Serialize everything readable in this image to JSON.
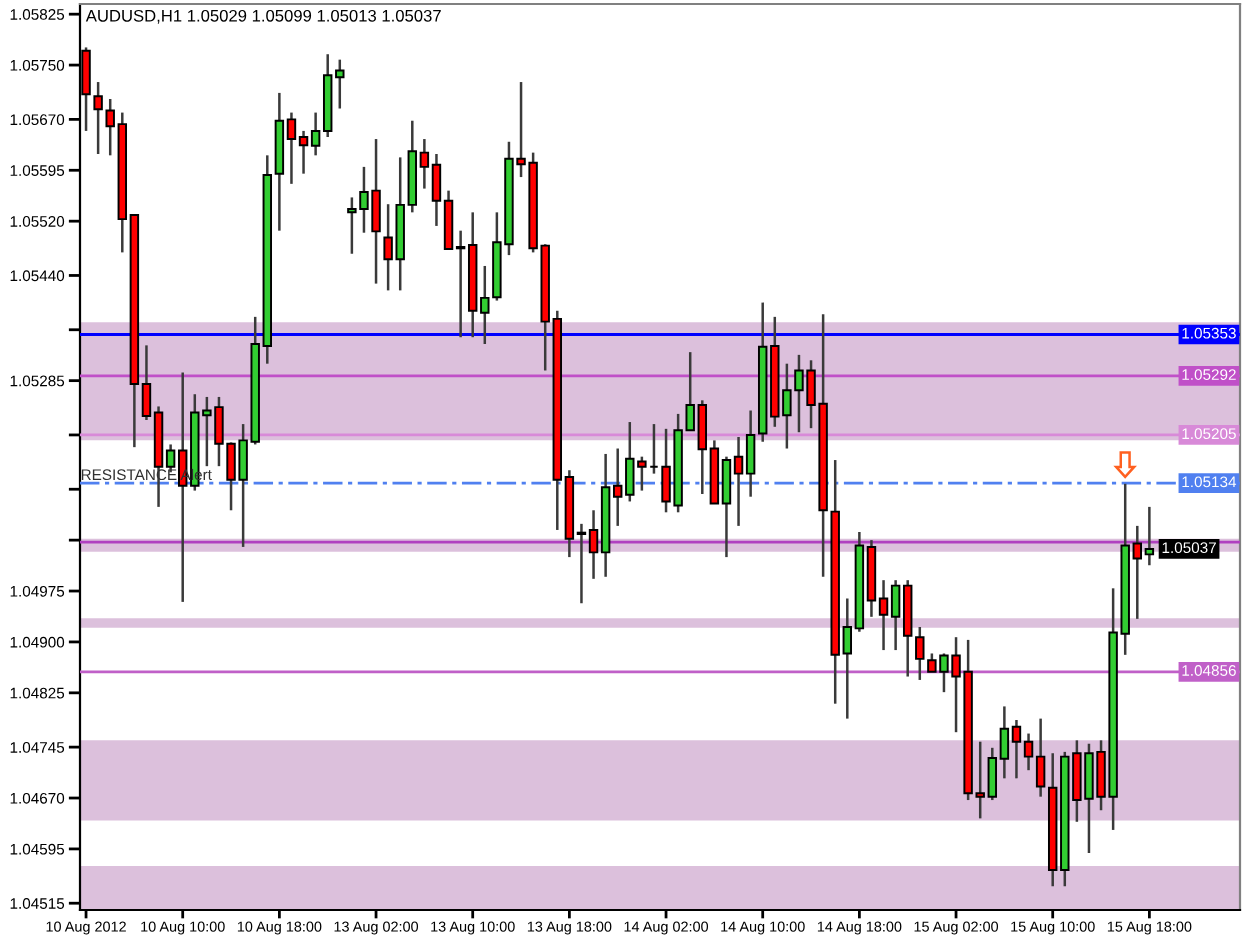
{
  "chart_data": {
    "type": "candlestick",
    "title": "AUDUSD,H1 1.05029 1.05099 1.05013 1.05037",
    "categories": [
      "10 Aug 2012",
      null,
      null,
      null,
      null,
      null,
      null,
      null,
      "10 Aug 10:00",
      null,
      null,
      null,
      null,
      null,
      null,
      null,
      "10 Aug 18:00",
      null,
      null,
      null,
      null,
      null,
      null,
      null,
      "13 Aug 02:00",
      null,
      null,
      null,
      null,
      null,
      null,
      null,
      "13 Aug 10:00",
      null,
      null,
      null,
      null,
      null,
      null,
      null,
      "13 Aug 18:00",
      null,
      null,
      null,
      null,
      null,
      null,
      null,
      "14 Aug 02:00",
      null,
      null,
      null,
      null,
      null,
      null,
      null,
      "14 Aug 10:00",
      null,
      null,
      null,
      null,
      null,
      null,
      null,
      "14 Aug 18:00",
      null,
      null,
      null,
      null,
      null,
      null,
      null,
      "15 Aug 02:00",
      null,
      null,
      null,
      null,
      null,
      null,
      null,
      "15 Aug 10:00",
      null,
      null,
      null,
      null,
      null,
      null,
      null,
      "15 Aug 18:00"
    ],
    "ohlc": [
      [
        1.05771,
        1.05776,
        1.05653,
        1.05707
      ],
      [
        1.05704,
        1.05725,
        1.05619,
        1.05685
      ],
      [
        1.05683,
        1.057,
        1.05617,
        1.0566
      ],
      [
        1.05663,
        1.0568,
        1.05474,
        1.05523
      ],
      [
        1.05529,
        1.05529,
        1.05187,
        1.0528
      ],
      [
        1.0528,
        1.05337,
        1.05227,
        1.05233
      ],
      [
        1.05238,
        1.05247,
        1.05099,
        1.05158
      ],
      [
        1.05158,
        1.05191,
        1.0515,
        1.05182
      ],
      [
        1.05182,
        1.05297,
        1.04959,
        1.0513
      ],
      [
        1.0513,
        1.05265,
        1.05123,
        1.05238
      ],
      [
        1.05234,
        1.05261,
        1.05159,
        1.05241
      ],
      [
        1.05246,
        1.05261,
        1.05159,
        1.05192
      ],
      [
        1.05192,
        1.05194,
        1.05094,
        1.05139
      ],
      [
        1.05139,
        1.05221,
        1.0504,
        1.05197
      ],
      [
        1.05195,
        1.05379,
        1.05191,
        1.05339
      ],
      [
        1.05336,
        1.05617,
        1.0531,
        1.05588
      ],
      [
        1.0559,
        1.05709,
        1.05506,
        1.05668
      ],
      [
        1.0567,
        1.0568,
        1.05575,
        1.05641
      ],
      [
        1.05644,
        1.05653,
        1.0559,
        1.05632
      ],
      [
        1.05631,
        1.0568,
        1.05617,
        1.05653
      ],
      [
        1.05653,
        1.05766,
        1.05644,
        1.05735
      ],
      [
        1.05732,
        1.05758,
        1.05686,
        1.05742
      ],
      [
        1.05533,
        1.05555,
        1.05472,
        1.05538
      ],
      [
        1.05538,
        1.056,
        1.05503,
        1.05563
      ],
      [
        1.05565,
        1.05641,
        1.05428,
        1.05505
      ],
      [
        1.05496,
        1.05545,
        1.05418,
        1.05464
      ],
      [
        1.05464,
        1.05614,
        1.05418,
        1.05544
      ],
      [
        1.05544,
        1.05668,
        1.05533,
        1.05623
      ],
      [
        1.05621,
        1.05641,
        1.05568,
        1.056
      ],
      [
        1.05603,
        1.05619,
        1.05513,
        1.0555
      ],
      [
        1.0555,
        1.05565,
        1.05479,
        1.05479
      ],
      [
        1.05482,
        1.05506,
        1.05349,
        1.0548
      ],
      [
        1.05485,
        1.05533,
        1.05349,
        1.05388
      ],
      [
        1.05385,
        1.05454,
        1.05339,
        1.05407
      ],
      [
        1.05408,
        1.05533,
        1.05403,
        1.05489
      ],
      [
        1.05486,
        1.05637,
        1.0547,
        1.05612
      ],
      [
        1.05612,
        1.05725,
        1.05585,
        1.05604
      ],
      [
        1.05606,
        1.05621,
        1.05474,
        1.0548
      ],
      [
        1.05484,
        1.05486,
        1.053,
        1.05372
      ],
      [
        1.05376,
        1.05388,
        1.05065,
        1.05139
      ],
      [
        1.05143,
        1.05153,
        1.05025,
        1.05052
      ],
      [
        1.05059,
        1.05074,
        1.04957,
        1.05061
      ],
      [
        1.05065,
        1.05094,
        1.04993,
        1.05032
      ],
      [
        1.05032,
        1.05177,
        1.04996,
        1.05128
      ],
      [
        1.0513,
        1.05185,
        1.05071,
        1.05114
      ],
      [
        1.05117,
        1.05224,
        1.05107,
        1.0517
      ],
      [
        1.05166,
        1.05173,
        1.05123,
        1.05158
      ],
      [
        1.05158,
        1.05221,
        1.05148,
        1.05158
      ],
      [
        1.05158,
        1.05214,
        1.05091,
        1.05107
      ],
      [
        1.05101,
        1.05236,
        1.05091,
        1.05212
      ],
      [
        1.05212,
        1.05327,
        1.05212,
        1.05249
      ],
      [
        1.05249,
        1.05256,
        1.05118,
        1.05184
      ],
      [
        1.05185,
        1.05197,
        1.05104,
        1.05104
      ],
      [
        1.05104,
        1.05173,
        1.05025,
        1.05168
      ],
      [
        1.05173,
        1.05202,
        1.05071,
        1.05148
      ],
      [
        1.05148,
        1.05241,
        1.05114,
        1.05205
      ],
      [
        1.05207,
        1.054,
        1.05195,
        1.05335
      ],
      [
        1.05336,
        1.05379,
        1.05217,
        1.05232
      ],
      [
        1.05234,
        1.0531,
        1.05185,
        1.05271
      ],
      [
        1.05271,
        1.05323,
        1.05209,
        1.053
      ],
      [
        1.053,
        1.05315,
        1.05215,
        1.05249
      ],
      [
        1.05251,
        1.05383,
        1.04996,
        1.05094
      ],
      [
        1.05092,
        1.05168,
        1.04809,
        1.04881
      ],
      [
        1.04883,
        1.04964,
        1.04787,
        1.04922
      ],
      [
        1.0492,
        1.05062,
        1.04915,
        1.05042
      ],
      [
        1.0504,
        1.0505,
        1.04937,
        1.04961
      ],
      [
        1.04964,
        1.04991,
        1.04888,
        1.0494
      ],
      [
        1.04937,
        1.04991,
        1.04888,
        1.04983
      ],
      [
        1.04983,
        1.04991,
        1.04849,
        1.04909
      ],
      [
        1.04907,
        1.04922,
        1.04844,
        1.04875
      ],
      [
        1.04873,
        1.04883,
        1.04856,
        1.04856
      ],
      [
        1.04856,
        1.04883,
        1.04826,
        1.0488
      ],
      [
        1.0488,
        1.04907,
        1.04767,
        1.04849
      ],
      [
        1.04856,
        1.04903,
        1.04667,
        1.04677
      ],
      [
        1.04677,
        1.04753,
        1.0464,
        1.04672
      ],
      [
        1.04672,
        1.04744,
        1.04667,
        1.04729
      ],
      [
        1.04728,
        1.04805,
        1.04699,
        1.04772
      ],
      [
        1.04775,
        1.04785,
        1.04699,
        1.04753
      ],
      [
        1.04753,
        1.04765,
        1.04711,
        1.04731
      ],
      [
        1.04731,
        1.04787,
        1.04672,
        1.04687
      ],
      [
        1.04685,
        1.04736,
        1.0454,
        1.04564
      ],
      [
        1.04564,
        1.04738,
        1.0454,
        1.04731
      ],
      [
        1.04736,
        1.04755,
        1.04635,
        1.04667
      ],
      [
        1.04669,
        1.0475,
        1.04589,
        1.04736
      ],
      [
        1.04738,
        1.04755,
        1.04652,
        1.04672
      ],
      [
        1.04672,
        1.04979,
        1.04623,
        1.04914
      ],
      [
        1.04912,
        1.05133,
        1.04881,
        1.05042
      ],
      [
        1.05045,
        1.05071,
        1.04934,
        1.05023
      ],
      [
        1.05029,
        1.05099,
        1.05013,
        1.05037
      ]
    ],
    "colors": [
      "#ff0000",
      "#ff0000",
      "#ff0000",
      "#ff0000",
      "#ff0000",
      "#ff0000",
      "#ff0000",
      "#32cd32",
      "#ff0000",
      "#32cd32",
      "#32cd32",
      "#ff0000",
      "#ff0000",
      "#32cd32",
      "#32cd32",
      "#32cd32",
      "#32cd32",
      "#ff0000",
      "#ff0000",
      "#32cd32",
      "#32cd32",
      "#32cd32",
      "#32cd32",
      "#32cd32",
      "#ff0000",
      "#ff0000",
      "#32cd32",
      "#32cd32",
      "#ff0000",
      "#ff0000",
      "#ff0000",
      "#ff0000",
      "#ff0000",
      "#32cd32",
      "#32cd32",
      "#32cd32",
      "#ff0000",
      "#ff0000",
      "#ff0000",
      "#ff0000",
      "#ff0000",
      "#32cd32",
      "#ff0000",
      "#32cd32",
      "#ff0000",
      "#32cd32",
      "#ff0000",
      "#000000",
      "#ff0000",
      "#32cd32",
      "#32cd32",
      "#ff0000",
      "#ff0000",
      "#32cd32",
      "#ff0000",
      "#32cd32",
      "#32cd32",
      "#ff0000",
      "#32cd32",
      "#32cd32",
      "#ff0000",
      "#ff0000",
      "#ff0000",
      "#32cd32",
      "#32cd32",
      "#ff0000",
      "#ff0000",
      "#32cd32",
      "#ff0000",
      "#ff0000",
      "#ff0000",
      "#32cd32",
      "#ff0000",
      "#ff0000",
      "#ff0000",
      "#32cd32",
      "#32cd32",
      "#ff0000",
      "#ff0000",
      "#ff0000",
      "#ff0000",
      "#32cd32",
      "#ff0000",
      "#32cd32",
      "#ff0000",
      "#32cd32",
      "#32cd32",
      "#ff0000",
      "#32cd32"
    ],
    "ylim": [
      1.04505,
      1.0584
    ],
    "yticks": [
      1.05825,
      {
        "value": 1.0575,
        "label": "1.05750"
      },
      {
        "value": 1.0567,
        "label": "1.05670"
      },
      1.05595,
      {
        "value": 1.0552,
        "label": "1.05520"
      },
      {
        "value": 1.0544,
        "label": "1.05440"
      },
      {
        "value": 1.0536,
        "label": null
      },
      1.05285,
      {
        "value": 1.05205,
        "label": null
      },
      {
        "value": 1.05125,
        "label": null
      },
      {
        "value": 1.0505,
        "label": null
      },
      1.04975,
      {
        "value": 1.049,
        "label": "1.04900"
      },
      1.04825,
      1.04745,
      {
        "value": 1.0467,
        "label": "1.04670"
      },
      1.04595,
      1.04515
    ],
    "ref_lines": [
      {
        "axis": "y",
        "value": 1.05353,
        "label": "1.05353",
        "color": "#0000ff"
      },
      {
        "axis": "y",
        "value": 1.05292,
        "label": "1.05292",
        "color": "#c050c8"
      },
      {
        "axis": "y",
        "value": 1.05205,
        "label": "1.05205",
        "color": "#d88ad8"
      },
      {
        "axis": "y",
        "value": 1.05134,
        "label": "1.05134",
        "color": "#5080f0",
        "line_style": "dashed"
      },
      {
        "axis": "y",
        "value": 1.05047,
        "label": null,
        "color": "#b040c0"
      },
      {
        "axis": "y",
        "value": 1.04856,
        "label": "1.04856",
        "color": "#c060c8"
      }
    ],
    "bands": [
      {
        "axis": "y",
        "from": 1.05197,
        "to": 1.05371,
        "color": "#dcc0dc"
      },
      {
        "axis": "y",
        "from": 1.05033,
        "to": 1.05052,
        "color": "#dcc0dc"
      },
      {
        "axis": "y",
        "from": 1.04921,
        "to": 1.04935,
        "color": "#dcc0dc"
      },
      {
        "axis": "y",
        "from": 1.04637,
        "to": 1.04755,
        "color": "#dcc0dc"
      },
      {
        "axis": "y",
        "from": 1.04505,
        "to": 1.0457,
        "color": "#dcc0dc"
      }
    ],
    "annotations": [
      {
        "text": "RESISTANCE Alert",
        "x": "10 Aug 2012",
        "y": 1.05134
      },
      {
        "text": "1.05037",
        "x": "15 Aug 18:00",
        "y": 1.05037
      }
    ]
  }
}
